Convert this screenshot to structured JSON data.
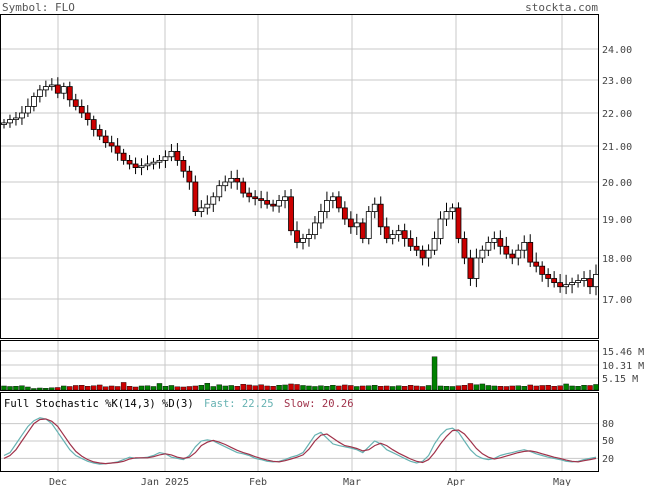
{
  "header": {
    "symbol_label": "Symbol: FLO",
    "brand": "stockta.com"
  },
  "colors": {
    "up": "#008000",
    "down": "#cc0000",
    "grid": "#c8c8c8",
    "fast": "#66b2b2",
    "slow": "#a0324a",
    "frame": "#000000"
  },
  "stochastic": {
    "label": "Full Stochastic %K(14,3) %D(3)",
    "fast_label": "Fast: 22.25",
    "slow_label": "Slow: 20.26",
    "levels": [
      "80",
      "50",
      "20"
    ]
  },
  "volume": {
    "ticks": [
      "15.46 M",
      "10.31 M",
      "5.15 M"
    ]
  },
  "chart_data": {
    "type": "candlestick",
    "price_axis": {
      "ticks": [
        24,
        23,
        22,
        21,
        20,
        19,
        18,
        17
      ],
      "tick_labels": [
        "24.00",
        "23.00",
        "22.00",
        "21.00",
        "20.00",
        "19.00",
        "18.00",
        "17.00"
      ]
    },
    "x_labels": [
      "Dec",
      "Jan 2025",
      "Feb",
      "Mar",
      "Apr",
      "May"
    ],
    "closes": [
      21.7,
      21.8,
      21.85,
      22.0,
      22.2,
      22.5,
      22.7,
      22.8,
      22.85,
      22.6,
      22.8,
      22.4,
      22.2,
      22.0,
      21.8,
      21.5,
      21.3,
      21.1,
      21.0,
      20.8,
      20.6,
      20.5,
      20.4,
      20.45,
      20.5,
      20.55,
      20.6,
      20.7,
      20.85,
      20.6,
      20.3,
      20.0,
      19.2,
      19.3,
      19.4,
      19.6,
      19.9,
      20.0,
      20.1,
      20.0,
      19.7,
      19.6,
      19.55,
      19.5,
      19.4,
      19.35,
      19.5,
      19.6,
      18.7,
      18.4,
      18.5,
      18.6,
      18.9,
      19.2,
      19.5,
      19.6,
      19.3,
      19.0,
      18.8,
      18.9,
      18.5,
      19.2,
      19.4,
      18.8,
      18.5,
      18.6,
      18.7,
      18.5,
      18.3,
      18.2,
      18.0,
      18.2,
      18.5,
      19.0,
      19.2,
      19.3,
      18.5,
      18.0,
      17.5,
      18.0,
      18.2,
      18.4,
      18.5,
      18.3,
      18.1,
      18.0,
      18.2,
      18.4,
      17.9,
      17.8,
      17.6,
      17.5,
      17.4,
      17.3,
      17.35,
      17.4,
      17.45,
      17.5,
      17.3,
      17.6
    ],
    "volumes": [
      1.6,
      1.4,
      1.5,
      1.7,
      1.2,
      0.6,
      0.8,
      0.7,
      0.9,
      1.0,
      1.6,
      1.4,
      1.8,
      1.9,
      1.5,
      1.7,
      2.0,
      1.3,
      1.6,
      1.4,
      3.0,
      1.5,
      1.2,
      1.6,
      1.7,
      1.4,
      2.6,
      1.5,
      1.8,
      1.3,
      1.2,
      1.4,
      1.6,
      1.9,
      2.7,
      1.4,
      2.1,
      1.6,
      1.8,
      1.5,
      2.3,
      2.0,
      1.7,
      2.1,
      1.6,
      1.5,
      1.9,
      2.0,
      2.4,
      2.2,
      1.8,
      1.6,
      1.4,
      1.7,
      1.5,
      1.9,
      1.6,
      2.0,
      1.8,
      1.4,
      1.6,
      1.7,
      1.9,
      1.5,
      1.6,
      1.4,
      1.7,
      1.5,
      1.9,
      1.6,
      1.4,
      1.8,
      13.2,
      1.6,
      1.5,
      1.4,
      1.7,
      1.9,
      2.6,
      2.1,
      2.4,
      1.8,
      1.6,
      1.5,
      1.4,
      1.6,
      1.7,
      1.5,
      2.0,
      1.6,
      1.8,
      1.9,
      1.5,
      1.7,
      2.4,
      1.6,
      1.5,
      1.9,
      1.8,
      2.2
    ],
    "stoch_fast": [
      25,
      30,
      45,
      60,
      75,
      85,
      90,
      88,
      80,
      65,
      50,
      35,
      25,
      20,
      15,
      12,
      10,
      11,
      12,
      14,
      18,
      22,
      20,
      21,
      22,
      25,
      30,
      28,
      22,
      20,
      18,
      25,
      40,
      50,
      52,
      50,
      45,
      40,
      35,
      30,
      28,
      25,
      20,
      18,
      15,
      14,
      15,
      18,
      22,
      25,
      30,
      45,
      60,
      65,
      55,
      45,
      42,
      40,
      38,
      35,
      30,
      40,
      50,
      45,
      35,
      30,
      25,
      20,
      15,
      12,
      15,
      25,
      45,
      60,
      70,
      72,
      65,
      50,
      35,
      25,
      20,
      18,
      20,
      25,
      28,
      30,
      33,
      35,
      32,
      28,
      25,
      22,
      20,
      18,
      15,
      14,
      15,
      18,
      20,
      22
    ],
    "stoch_slow": [
      20,
      25,
      35,
      50,
      65,
      80,
      87,
      88,
      84,
      75,
      60,
      45,
      32,
      24,
      18,
      14,
      12,
      11,
      12,
      13,
      15,
      19,
      21,
      21,
      21,
      23,
      26,
      28,
      26,
      22,
      20,
      22,
      30,
      42,
      48,
      51,
      48,
      44,
      39,
      34,
      30,
      27,
      23,
      20,
      17,
      15,
      14,
      16,
      19,
      22,
      26,
      36,
      50,
      60,
      62,
      55,
      48,
      42,
      40,
      37,
      33,
      35,
      42,
      46,
      42,
      35,
      29,
      24,
      19,
      15,
      13,
      18,
      30,
      45,
      58,
      68,
      69,
      62,
      50,
      37,
      28,
      22,
      19,
      21,
      24,
      27,
      30,
      32,
      33,
      31,
      28,
      25,
      22,
      20,
      17,
      15,
      14,
      16,
      18,
      20
    ]
  }
}
